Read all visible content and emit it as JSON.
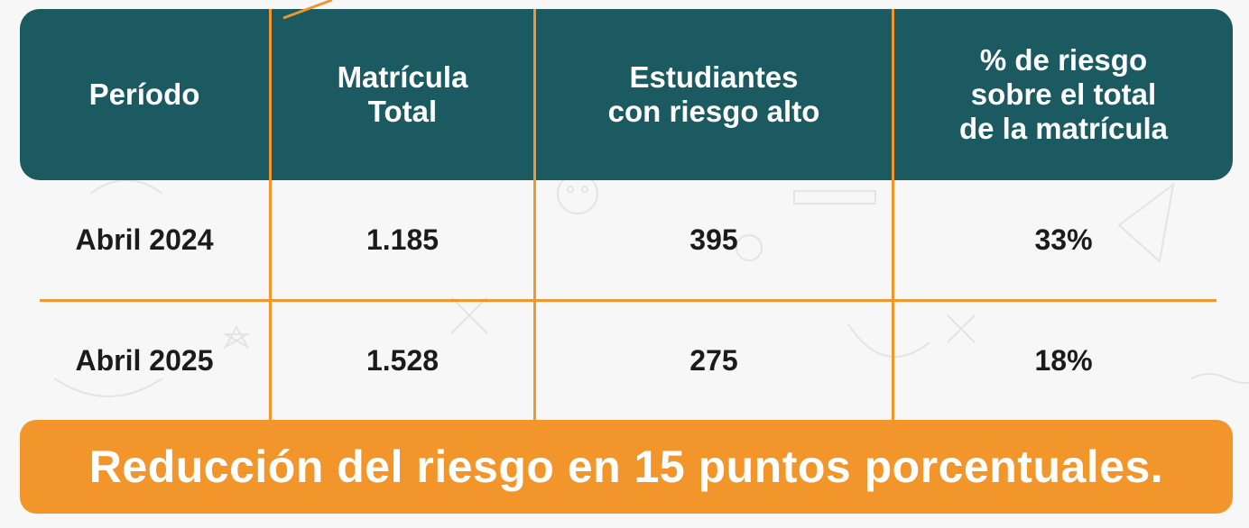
{
  "colors": {
    "header_bg": "#1c5a61",
    "accent": "#f2962b",
    "background": "#f7f7f7",
    "text_dark": "#1b1b1b",
    "text_light": "#ffffff"
  },
  "table": {
    "headers": [
      "Período",
      "Matrícula\nTotal",
      "Estudiantes\ncon riesgo alto",
      "% de riesgo\nsobre el total\nde la matrícula"
    ],
    "rows": [
      [
        "Abril 2024",
        "1.185",
        "395",
        "33%"
      ],
      [
        "Abril 2025",
        "1.528",
        "275",
        "18%"
      ]
    ]
  },
  "footer": {
    "text": "Reducción del riesgo en 15 puntos porcentuales."
  }
}
